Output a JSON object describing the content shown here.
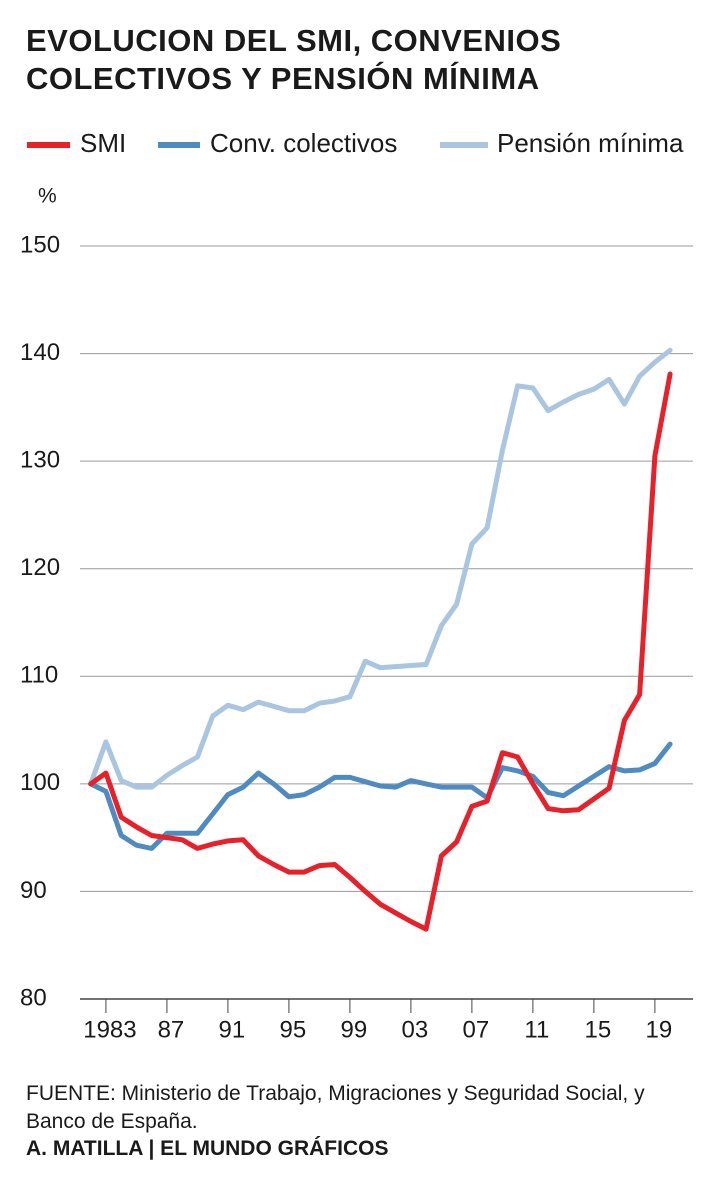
{
  "chart_data": {
    "type": "line",
    "title": "EVOLUCION DEL SMI, CONVENIOS COLECTIVOS Y PENSIÓN MÍNIMA",
    "y_label": "%",
    "source": "FUENTE: Ministerio de Trabajo, Migraciones y Seguridad Social, y Banco de España.",
    "credit": "A. MATILLA | EL MUNDO GRÁFICOS",
    "x": [
      1982,
      1983,
      1984,
      1985,
      1986,
      1987,
      1988,
      1989,
      1990,
      1991,
      1992,
      1993,
      1994,
      1995,
      1996,
      1997,
      1998,
      1999,
      2000,
      2001,
      2002,
      2003,
      2004,
      2005,
      2006,
      2007,
      2008,
      2009,
      2010,
      2011,
      2012,
      2013,
      2014,
      2015,
      2016,
      2017,
      2018,
      2019,
      2020
    ],
    "series": [
      {
        "name": "SMI",
        "color": "#e8202a",
        "values": [
          100,
          101.0,
          96.9,
          96.0,
          95.2,
          95.0,
          94.8,
          94.0,
          94.4,
          94.7,
          94.8,
          93.3,
          92.5,
          91.8,
          91.8,
          92.4,
          92.5,
          91.3,
          90.0,
          88.8,
          88.0,
          87.2,
          86.5,
          93.3,
          94.6,
          97.9,
          98.4,
          102.9,
          102.5,
          100.0,
          97.7,
          97.5,
          97.6,
          98.6,
          99.6,
          105.9,
          108.3,
          130.5,
          138.1
        ]
      },
      {
        "name": "Conv. colectivos",
        "color": "#4f8bc0",
        "values": [
          100,
          99.3,
          95.2,
          94.3,
          94.0,
          95.4,
          95.4,
          95.4,
          97.2,
          99.0,
          99.7,
          101.0,
          100.0,
          98.8,
          99.0,
          99.7,
          100.6,
          100.6,
          100.2,
          99.8,
          99.7,
          100.3,
          100.0,
          99.7,
          99.7,
          99.7,
          98.7,
          101.5,
          101.2,
          100.7,
          99.2,
          98.9,
          99.8,
          100.7,
          101.6,
          101.2,
          101.3,
          101.9,
          103.7
        ]
      },
      {
        "name": "Pensión mínima",
        "color": "#a9c5df",
        "values": [
          100,
          103.9,
          100.3,
          99.7,
          99.7,
          100.8,
          101.7,
          102.5,
          106.3,
          107.3,
          106.9,
          107.6,
          107.2,
          106.8,
          106.8,
          107.5,
          107.7,
          108.1,
          111.4,
          110.8,
          110.9,
          111.0,
          111.1,
          114.7,
          116.7,
          122.3,
          123.8,
          131.0,
          137.0,
          136.8,
          134.7,
          135.5,
          136.2,
          136.7,
          137.6,
          135.3,
          137.9,
          139.2,
          140.3
        ]
      }
    ],
    "xlim": [
      1981.3,
      2021.5
    ],
    "xticks": [
      1983,
      {
        "value": 1987,
        "label": "87"
      },
      {
        "value": 1991,
        "label": "91"
      },
      {
        "value": 1995,
        "label": "95"
      },
      {
        "value": 1999,
        "label": "99"
      },
      {
        "value": 2003,
        "label": "03"
      },
      {
        "value": 2007,
        "label": "07"
      },
      {
        "value": 2011,
        "label": "11"
      },
      {
        "value": 2015,
        "label": "15"
      },
      {
        "value": 2019,
        "label": "19"
      }
    ],
    "ylim": [
      80,
      150
    ],
    "yticks": [
      80,
      90,
      100,
      110,
      120,
      130,
      140,
      150
    ],
    "grid": true
  }
}
